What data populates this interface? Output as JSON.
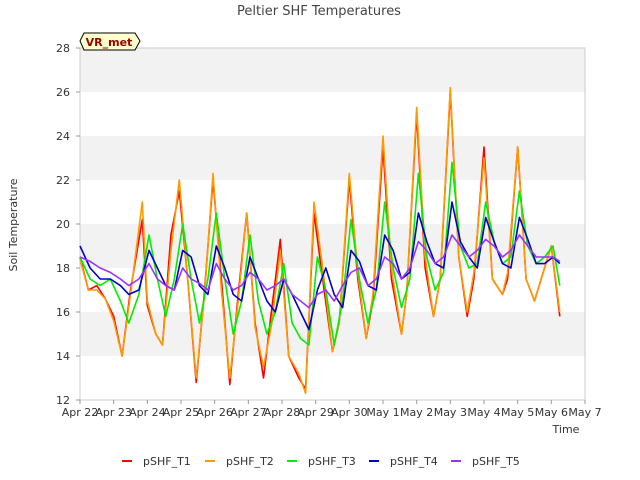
{
  "chart_data": {
    "type": "line",
    "title": "Peltier SHF Temperatures",
    "xlabel": "Time",
    "ylabel": "Soil Temperature",
    "badge": "VR_met",
    "ylim": [
      12,
      28
    ],
    "xlim": [
      0,
      15
    ],
    "yticks": [
      12,
      14,
      16,
      18,
      20,
      22,
      24,
      26,
      28
    ],
    "xticks": [
      "Apr 22",
      "Apr 23",
      "Apr 24",
      "Apr 25",
      "Apr 26",
      "Apr 27",
      "Apr 28",
      "Apr 29",
      "Apr 30",
      "May 1",
      "May 2",
      "May 3",
      "May 4",
      "May 5",
      "May 6",
      "May 7"
    ],
    "grid": "horizontal bands",
    "legend_position": "bottom",
    "colors": {
      "pSHF_T1": "#ff0000",
      "pSHF_T2": "#ff9900",
      "pSHF_T3": "#00ee00",
      "pSHF_T4": "#0000cc",
      "pSHF_T5": "#9933ff",
      "band": "#f2f2f2",
      "badge_bg": "#ffffcc",
      "badge_text": "#990000"
    },
    "series": [
      {
        "name": "pSHF_T1",
        "x": [
          0.0,
          0.25,
          0.5,
          0.75,
          1.0,
          1.25,
          1.5,
          1.85,
          2.0,
          2.25,
          2.45,
          2.7,
          2.95,
          3.2,
          3.45,
          3.7,
          3.95,
          4.2,
          4.45,
          4.7,
          4.95,
          5.2,
          5.45,
          5.7,
          5.95,
          6.2,
          6.5,
          6.7,
          6.95,
          7.25,
          7.5,
          7.7,
          8.0,
          8.25,
          8.5,
          8.7,
          9.0,
          9.25,
          9.55,
          9.7,
          10.0,
          10.25,
          10.5,
          10.7,
          11.0,
          11.25,
          11.5,
          11.7,
          12.0,
          12.25,
          12.55,
          12.7,
          13.0,
          13.25,
          13.5,
          13.7,
          14.0,
          14.25
        ],
        "y": [
          18.5,
          17.0,
          17.2,
          16.6,
          15.8,
          14.0,
          17.0,
          20.2,
          16.3,
          15.0,
          14.5,
          19.5,
          21.5,
          17.5,
          12.8,
          17.0,
          22.0,
          17.5,
          12.7,
          16.8,
          20.5,
          15.5,
          13.0,
          16.2,
          19.3,
          14.0,
          13.0,
          12.5,
          20.5,
          17.0,
          14.2,
          15.5,
          22.0,
          17.5,
          14.8,
          16.5,
          23.5,
          17.5,
          15.0,
          16.8,
          25.0,
          18.0,
          15.8,
          17.5,
          26.0,
          18.5,
          15.8,
          17.5,
          23.5,
          17.5,
          16.8,
          17.5,
          23.5,
          17.5,
          16.5,
          17.5,
          19.0,
          15.8
        ]
      },
      {
        "name": "pSHF_T2",
        "x": [
          0.0,
          0.25,
          0.5,
          0.75,
          1.0,
          1.25,
          1.5,
          1.85,
          2.0,
          2.25,
          2.45,
          2.7,
          2.95,
          3.2,
          3.45,
          3.7,
          3.95,
          4.2,
          4.45,
          4.7,
          4.95,
          5.2,
          5.45,
          5.7,
          5.95,
          6.2,
          6.5,
          6.7,
          6.95,
          7.25,
          7.5,
          7.7,
          8.0,
          8.25,
          8.5,
          8.7,
          9.0,
          9.25,
          9.55,
          9.7,
          10.0,
          10.25,
          10.5,
          10.7,
          11.0,
          11.25,
          11.5,
          11.7,
          12.0,
          12.25,
          12.55,
          12.7,
          13.0,
          13.25,
          13.5,
          13.7,
          14.0,
          14.25
        ],
        "y": [
          18.4,
          17.0,
          17.0,
          16.6,
          15.6,
          14.0,
          16.8,
          21.0,
          16.5,
          15.0,
          14.5,
          18.8,
          22.0,
          17.5,
          13.0,
          16.8,
          22.3,
          17.0,
          13.0,
          16.5,
          20.5,
          15.3,
          13.5,
          15.5,
          18.8,
          14.0,
          13.2,
          12.3,
          21.0,
          17.5,
          14.2,
          15.5,
          22.3,
          17.8,
          14.8,
          16.8,
          24.0,
          18.0,
          15.0,
          16.8,
          25.3,
          18.5,
          15.8,
          17.5,
          26.2,
          18.5,
          16.0,
          17.8,
          23.0,
          17.5,
          16.8,
          17.8,
          23.5,
          17.5,
          16.5,
          17.5,
          19.0,
          16.0
        ]
      },
      {
        "name": "pSHF_T3",
        "x": [
          0.0,
          0.3,
          0.6,
          0.9,
          1.2,
          1.45,
          1.75,
          2.05,
          2.3,
          2.55,
          2.8,
          3.05,
          3.3,
          3.55,
          3.8,
          4.05,
          4.3,
          4.55,
          4.8,
          5.05,
          5.3,
          5.55,
          5.8,
          6.05,
          6.3,
          6.55,
          6.8,
          7.05,
          7.3,
          7.55,
          7.8,
          8.05,
          8.3,
          8.55,
          8.8,
          9.05,
          9.3,
          9.55,
          9.8,
          10.05,
          10.3,
          10.55,
          10.8,
          11.05,
          11.3,
          11.55,
          11.8,
          12.05,
          12.3,
          12.55,
          12.8,
          13.05,
          13.3,
          13.55,
          13.8,
          14.05,
          14.25
        ],
        "y": [
          18.5,
          17.5,
          17.2,
          17.5,
          16.5,
          15.5,
          16.8,
          19.5,
          17.5,
          15.8,
          17.5,
          20.0,
          17.5,
          15.5,
          17.5,
          20.5,
          17.5,
          15.0,
          16.5,
          19.5,
          16.5,
          15.0,
          16.0,
          18.2,
          15.5,
          14.8,
          14.5,
          18.5,
          17.0,
          14.5,
          16.5,
          20.2,
          17.5,
          15.5,
          17.0,
          21.0,
          18.0,
          16.2,
          17.5,
          22.3,
          18.5,
          17.0,
          17.8,
          22.8,
          19.0,
          18.0,
          18.2,
          21.0,
          19.2,
          18.2,
          18.5,
          21.5,
          19.0,
          18.2,
          18.5,
          19.0,
          17.2
        ]
      },
      {
        "name": "pSHF_T4",
        "x": [
          0.0,
          0.3,
          0.6,
          0.9,
          1.2,
          1.45,
          1.75,
          2.05,
          2.3,
          2.55,
          2.8,
          3.05,
          3.3,
          3.55,
          3.8,
          4.05,
          4.3,
          4.55,
          4.8,
          5.05,
          5.3,
          5.55,
          5.8,
          6.05,
          6.3,
          6.55,
          6.8,
          7.05,
          7.3,
          7.55,
          7.8,
          8.05,
          8.3,
          8.55,
          8.8,
          9.05,
          9.3,
          9.55,
          9.8,
          10.05,
          10.3,
          10.55,
          10.8,
          11.05,
          11.3,
          11.55,
          11.8,
          12.05,
          12.3,
          12.55,
          12.8,
          13.05,
          13.3,
          13.55,
          13.8,
          14.05,
          14.25
        ],
        "y": [
          19.0,
          18.0,
          17.5,
          17.5,
          17.2,
          16.8,
          17.0,
          18.8,
          18.0,
          17.2,
          17.0,
          18.8,
          18.5,
          17.2,
          16.8,
          19.0,
          18.0,
          16.8,
          16.5,
          18.5,
          17.5,
          16.5,
          16.0,
          17.5,
          16.8,
          16.0,
          15.2,
          17.0,
          18.0,
          16.8,
          16.2,
          18.8,
          18.3,
          17.2,
          17.0,
          19.5,
          18.8,
          17.5,
          17.8,
          20.5,
          19.2,
          18.2,
          18.0,
          21.0,
          19.2,
          18.5,
          18.0,
          20.3,
          19.2,
          18.2,
          18.0,
          20.3,
          19.3,
          18.2,
          18.2,
          18.5,
          18.2
        ]
      },
      {
        "name": "pSHF_T5",
        "x": [
          0.0,
          0.3,
          0.6,
          0.9,
          1.2,
          1.45,
          1.75,
          2.05,
          2.3,
          2.55,
          2.8,
          3.05,
          3.3,
          3.55,
          3.8,
          4.05,
          4.3,
          4.55,
          4.8,
          5.05,
          5.3,
          5.55,
          5.8,
          6.05,
          6.3,
          6.55,
          6.8,
          7.05,
          7.3,
          7.55,
          7.8,
          8.05,
          8.3,
          8.55,
          8.8,
          9.05,
          9.3,
          9.55,
          9.8,
          10.05,
          10.3,
          10.55,
          10.8,
          11.05,
          11.3,
          11.55,
          11.8,
          12.05,
          12.3,
          12.55,
          12.8,
          13.05,
          13.3,
          13.55,
          13.8,
          14.05,
          14.25
        ],
        "y": [
          18.5,
          18.3,
          18.0,
          17.8,
          17.5,
          17.2,
          17.5,
          18.2,
          17.5,
          17.2,
          17.0,
          18.0,
          17.5,
          17.3,
          17.0,
          18.2,
          17.5,
          17.0,
          17.2,
          17.8,
          17.5,
          17.0,
          17.2,
          17.5,
          16.8,
          16.5,
          16.2,
          16.8,
          17.0,
          16.5,
          17.2,
          17.8,
          18.0,
          17.2,
          17.5,
          18.5,
          18.2,
          17.5,
          18.0,
          19.2,
          18.8,
          18.2,
          18.5,
          19.5,
          19.0,
          18.5,
          18.8,
          19.3,
          19.0,
          18.5,
          18.8,
          19.5,
          19.0,
          18.5,
          18.5,
          18.5,
          18.3
        ]
      }
    ]
  }
}
